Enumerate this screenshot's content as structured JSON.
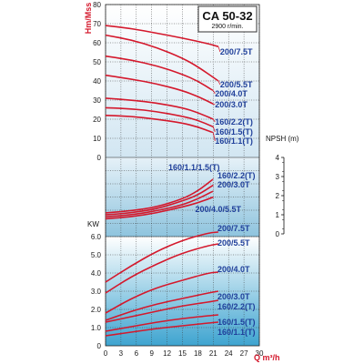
{
  "colors": {
    "curve": "#d4182c",
    "label": "#1f3f9a",
    "axisRed": "#d4182c",
    "grid": "#3a3a3a"
  },
  "chart_data": {
    "type": "line",
    "title": "CA 50-32",
    "subtitle": "2900 r/min.",
    "xlabel": "Q m³/h",
    "x_ticks": [
      "0",
      "3",
      "6",
      "9",
      "12",
      "15",
      "18",
      "21",
      "24",
      "27",
      "30"
    ],
    "xlim": [
      0,
      30
    ],
    "head": {
      "ylabel": "Hm/Mss",
      "y_ticks": [
        "0",
        "10",
        "20",
        "30",
        "40",
        "50",
        "60",
        "70",
        "80"
      ],
      "ylim": [
        0,
        80
      ],
      "series": [
        {
          "name": "200/7.5T",
          "x": [
            0,
            5,
            10,
            15,
            20,
            22
          ],
          "y": [
            69,
            67.5,
            65,
            62.5,
            59.5,
            58
          ]
        },
        {
          "name": "200/5.5T",
          "x": [
            0,
            5,
            10,
            15,
            18,
            22
          ],
          "y": [
            64,
            61.5,
            57.5,
            52,
            47.5,
            40
          ]
        },
        {
          "name": "200/4.0T",
          "x": [
            0,
            5,
            10,
            15,
            18,
            21
          ],
          "y": [
            53,
            51,
            48,
            43.5,
            40,
            35
          ]
        },
        {
          "name": "200/3.0T",
          "x": [
            0,
            5,
            10,
            15,
            18,
            21
          ],
          "y": [
            43,
            41,
            38.5,
            35,
            32,
            28
          ]
        },
        {
          "name": "160/2.2(T)",
          "x": [
            0,
            5,
            10,
            15,
            18,
            21
          ],
          "y": [
            31,
            30,
            28.5,
            26,
            23.5,
            20
          ]
        },
        {
          "name": "160/1.5(T)",
          "x": [
            0,
            5,
            10,
            15,
            18,
            21
          ],
          "y": [
            26,
            25.5,
            24,
            21.5,
            19.5,
            16
          ]
        },
        {
          "name": "160/1.1(T)",
          "x": [
            0,
            5,
            10,
            15,
            18,
            21
          ],
          "y": [
            22,
            21.5,
            20,
            18,
            16,
            13
          ]
        }
      ]
    },
    "npsh": {
      "ylabel": "NPSH (m)",
      "y_ticks": [
        "0",
        "1",
        "2",
        "3",
        "4"
      ],
      "ylim": [
        0,
        4
      ],
      "curve_labels": [
        "160/1.1/1.5(T)",
        "160/2.2(T)",
        "200/3.0T",
        "200/4.0/5.5T"
      ],
      "series": [
        {
          "name": "160/1.1/1.5(T)",
          "x": [
            0,
            5,
            10,
            15,
            18,
            21
          ],
          "y": [
            1.2,
            1.3,
            1.5,
            1.9,
            2.3,
            2.9
          ]
        },
        {
          "name": "160/2.2(T)",
          "x": [
            0,
            5,
            10,
            15,
            18,
            21
          ],
          "y": [
            1.1,
            1.2,
            1.4,
            1.8,
            2.1,
            2.6
          ]
        },
        {
          "name": "200/3.0T",
          "x": [
            0,
            5,
            10,
            15,
            18,
            21
          ],
          "y": [
            1.0,
            1.1,
            1.3,
            1.6,
            1.9,
            2.3
          ]
        },
        {
          "name": "200/4.0/5.5T",
          "x": [
            0,
            5,
            10,
            15,
            18,
            21
          ],
          "y": [
            0.9,
            1.0,
            1.2,
            1.5,
            1.7,
            2.0
          ]
        }
      ]
    },
    "power": {
      "ylabel": "KW",
      "y_ticks": [
        "0",
        "1.0",
        "2.0",
        "3.0",
        "4.0",
        "5.0",
        "6.0"
      ],
      "ylim": [
        0,
        6.5
      ],
      "series": [
        {
          "name": "200/7.5T",
          "x": [
            0,
            5,
            10,
            15,
            20,
            22
          ],
          "y": [
            3.5,
            4.4,
            5.2,
            5.8,
            6.2,
            6.25
          ]
        },
        {
          "name": "200/5.5T",
          "x": [
            0,
            5,
            10,
            15,
            20,
            22
          ],
          "y": [
            2.9,
            3.8,
            4.5,
            5.1,
            5.5,
            5.6
          ]
        },
        {
          "name": "200/4.0T",
          "x": [
            0,
            5,
            10,
            15,
            20,
            22
          ],
          "y": [
            1.8,
            2.6,
            3.2,
            3.6,
            4.0,
            4.05
          ]
        },
        {
          "name": "200/3.0T",
          "x": [
            0,
            5,
            10,
            15,
            20,
            22
          ],
          "y": [
            1.4,
            1.9,
            2.3,
            2.6,
            2.9,
            3.0
          ]
        },
        {
          "name": "160/2.2(T)",
          "x": [
            0,
            5,
            10,
            15,
            20,
            22
          ],
          "y": [
            1.3,
            1.6,
            1.9,
            2.2,
            2.4,
            2.5
          ]
        },
        {
          "name": "160/1.5(T)",
          "x": [
            0,
            5,
            10,
            15,
            20,
            22
          ],
          "y": [
            0.8,
            1.05,
            1.3,
            1.5,
            1.65,
            1.7
          ]
        },
        {
          "name": "160/1.1(T)",
          "x": [
            0,
            5,
            10,
            15,
            20,
            22
          ],
          "y": [
            0.55,
            0.75,
            0.95,
            1.1,
            1.25,
            1.3
          ]
        }
      ]
    }
  }
}
